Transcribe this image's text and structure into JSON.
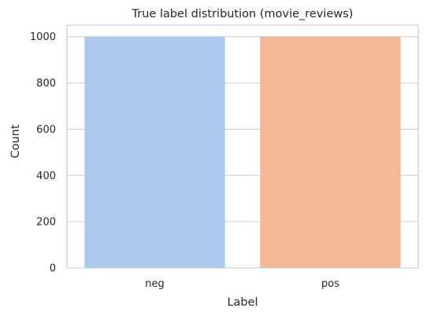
{
  "chart_data": {
    "type": "bar",
    "title": "True label distribution (movie_reviews)",
    "xlabel": "Label",
    "ylabel": "Count",
    "categories": [
      "neg",
      "pos"
    ],
    "values": [
      1000,
      1000
    ],
    "ylim": [
      0,
      1050
    ],
    "yticks": [
      0,
      200,
      400,
      600,
      800,
      1000
    ],
    "grid": true,
    "legend": "none",
    "colors": [
      "#abc9ed",
      "#f2b994"
    ],
    "colors_meta": {
      "grid": "#cccccc",
      "axes_edge": "#cccccc",
      "text": "#262626"
    }
  }
}
